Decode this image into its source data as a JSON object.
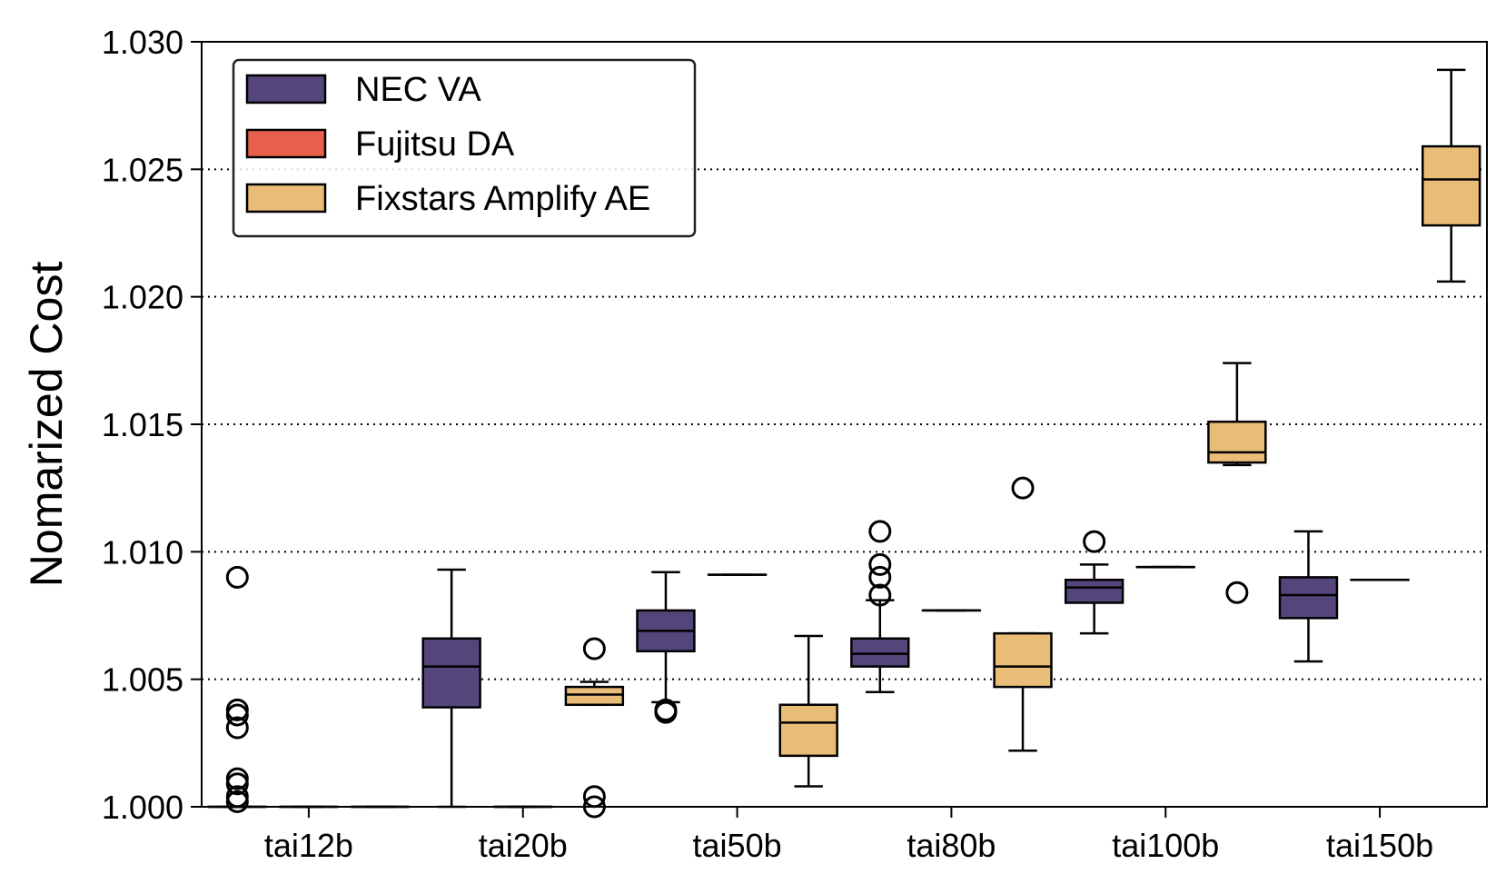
{
  "chart_data": {
    "type": "box",
    "title": "",
    "xlabel": "",
    "ylabel": "Nomarized Cost",
    "ylim": [
      1.0,
      1.03
    ],
    "yticks": [
      "1.000",
      "1.005",
      "1.010",
      "1.015",
      "1.020",
      "1.025",
      "1.030"
    ],
    "grid": "horizontal dotted",
    "legend_position": "top-left",
    "categories": [
      "tai12b",
      "tai20b",
      "tai50b",
      "tai80b",
      "tai100b",
      "tai150b"
    ],
    "series": [
      {
        "name": "NEC VA",
        "color": "#54467b",
        "boxes": [
          {
            "category": "tai12b",
            "whislo": 1.0,
            "q1": 1.0,
            "med": 1.0,
            "q3": 1.0,
            "whishi": 1.0,
            "fliers": [
              1.009,
              1.0038,
              1.0036,
              1.0031,
              1.0011,
              1.0009,
              1.0004,
              1.0002
            ]
          },
          {
            "category": "tai20b",
            "whislo": 1.0,
            "q1": 1.0039,
            "med": 1.0055,
            "q3": 1.0066,
            "whishi": 1.0093,
            "fliers": []
          },
          {
            "category": "tai50b",
            "whislo": 1.0041,
            "q1": 1.0061,
            "med": 1.0069,
            "q3": 1.0077,
            "whishi": 1.0092,
            "fliers": [
              1.0038,
              1.0037
            ]
          },
          {
            "category": "tai80b",
            "whislo": 1.0045,
            "q1": 1.0055,
            "med": 1.006,
            "q3": 1.0066,
            "whishi": 1.0081,
            "fliers": [
              1.0108,
              1.0095,
              1.009,
              1.0083
            ]
          },
          {
            "category": "tai100b",
            "whislo": 1.0068,
            "q1": 1.008,
            "med": 1.0086,
            "q3": 1.0089,
            "whishi": 1.0095,
            "fliers": [
              1.0104
            ]
          },
          {
            "category": "tai150b",
            "whislo": 1.0057,
            "q1": 1.0074,
            "med": 1.0083,
            "q3": 1.009,
            "whishi": 1.0108,
            "fliers": []
          }
        ]
      },
      {
        "name": "Fujitsu DA",
        "color": "#e8604c",
        "boxes": [
          {
            "category": "tai12b",
            "whislo": 1.0,
            "q1": 1.0,
            "med": 1.0,
            "q3": 1.0,
            "whishi": 1.0,
            "fliers": []
          },
          {
            "category": "tai20b",
            "whislo": 1.0,
            "q1": 1.0,
            "med": 1.0,
            "q3": 1.0,
            "whishi": 1.0,
            "fliers": []
          },
          {
            "category": "tai50b",
            "whislo": 1.0091,
            "q1": 1.0091,
            "med": 1.0091,
            "q3": 1.0091,
            "whishi": 1.0091,
            "fliers": []
          },
          {
            "category": "tai80b",
            "whislo": 1.0077,
            "q1": 1.0077,
            "med": 1.0077,
            "q3": 1.0077,
            "whishi": 1.0077,
            "fliers": []
          },
          {
            "category": "tai100b",
            "whislo": 1.0094,
            "q1": 1.0094,
            "med": 1.0094,
            "q3": 1.0094,
            "whishi": 1.0094,
            "fliers": []
          },
          {
            "category": "tai150b",
            "whislo": 1.0089,
            "q1": 1.0089,
            "med": 1.0089,
            "q3": 1.0089,
            "whishi": 1.0089,
            "fliers": []
          }
        ]
      },
      {
        "name": "Fixstars Amplify AE",
        "color": "#e9bc78",
        "boxes": [
          {
            "category": "tai12b",
            "whislo": 1.0,
            "q1": 1.0,
            "med": 1.0,
            "q3": 1.0,
            "whishi": 1.0,
            "fliers": []
          },
          {
            "category": "tai20b",
            "whislo": 1.004,
            "q1": 1.004,
            "med": 1.0044,
            "q3": 1.0047,
            "whishi": 1.0049,
            "fliers": [
              1.0062,
              1.0004,
              1.0
            ]
          },
          {
            "category": "tai50b",
            "whislo": 1.0008,
            "q1": 1.002,
            "med": 1.0033,
            "q3": 1.004,
            "whishi": 1.0067,
            "fliers": []
          },
          {
            "category": "tai80b",
            "whislo": 1.0022,
            "q1": 1.0047,
            "med": 1.0055,
            "q3": 1.0068,
            "whishi": 1.0068,
            "fliers": [
              1.0125
            ]
          },
          {
            "category": "tai100b",
            "whislo": 1.0134,
            "q1": 1.0135,
            "med": 1.0139,
            "q3": 1.0151,
            "whishi": 1.0174,
            "fliers": [
              1.0084
            ]
          },
          {
            "category": "tai150b",
            "whislo": 1.0206,
            "q1": 1.0228,
            "med": 1.0246,
            "q3": 1.0259,
            "whishi": 1.0289,
            "fliers": []
          }
        ]
      }
    ]
  }
}
